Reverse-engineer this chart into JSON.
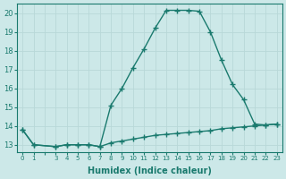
{
  "xlabel": "Humidex (Indice chaleur)",
  "x_labels": [
    "0",
    "1",
    "",
    "3",
    "4",
    "5",
    "6",
    "7",
    "8",
    "9",
    "10",
    "11",
    "12",
    "13",
    "14",
    "15",
    "16",
    "17",
    "18",
    "19",
    "20",
    "21",
    "22",
    "23"
  ],
  "x_positions": [
    0,
    1,
    2,
    3,
    4,
    5,
    6,
    7,
    8,
    9,
    10,
    11,
    12,
    13,
    14,
    15,
    16,
    17,
    18,
    19,
    20,
    21,
    22,
    23
  ],
  "data_x_idx": [
    0,
    1,
    3,
    4,
    5,
    6,
    7,
    8,
    9,
    10,
    11,
    12,
    13,
    14,
    15,
    16,
    17,
    18,
    19,
    20,
    21,
    22,
    23
  ],
  "y_line1": [
    13.8,
    13.0,
    12.9,
    13.0,
    13.0,
    13.0,
    12.9,
    13.1,
    13.2,
    13.3,
    13.4,
    13.5,
    13.55,
    13.6,
    13.65,
    13.7,
    13.75,
    13.85,
    13.9,
    13.95,
    14.0,
    14.05,
    14.1
  ],
  "y_line2": [
    13.8,
    13.0,
    12.9,
    13.0,
    13.0,
    13.0,
    12.9,
    15.1,
    16.0,
    17.1,
    18.1,
    19.2,
    20.15,
    20.15,
    20.15,
    20.1,
    19.0,
    17.5,
    16.2,
    15.4,
    14.1,
    14.05,
    14.1
  ],
  "line_color": "#1a7a6e",
  "bg_color": "#cce8e8",
  "grid_color": "#b8d8d8",
  "ylim": [
    12.6,
    20.5
  ],
  "yticks": [
    13,
    14,
    15,
    16,
    17,
    18,
    19,
    20
  ],
  "marker": "+",
  "markersize": 4,
  "linewidth": 1.0
}
